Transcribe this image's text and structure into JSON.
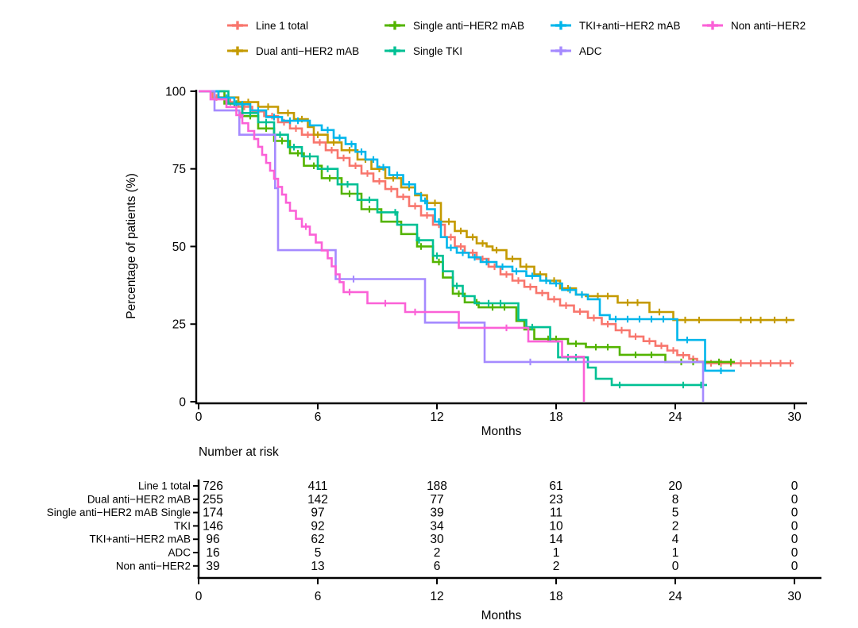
{
  "chart_data": {
    "type": "line",
    "subtype": "kaplan-meier-step",
    "title": "",
    "xlabel": "Months",
    "ylabel": "Percentage of patients (%)",
    "xlim": [
      0,
      30
    ],
    "ylim": [
      0,
      100
    ],
    "xticks": [
      0,
      6,
      12,
      18,
      24,
      30
    ],
    "yticks": [
      0,
      25,
      50,
      75,
      100
    ],
    "grid": false,
    "legend_position": "top",
    "legend_rows": [
      [
        0,
        2,
        4,
        6
      ],
      [
        1,
        3,
        5
      ]
    ],
    "series": [
      {
        "id": "line1-total",
        "name": "Line 1 total",
        "color": "#F8766D",
        "steps": [
          [
            0,
            100
          ],
          [
            0.7,
            98
          ],
          [
            1.4,
            96.5
          ],
          [
            2,
            95
          ],
          [
            2.7,
            93.5
          ],
          [
            3.3,
            92
          ],
          [
            4,
            90
          ],
          [
            4.6,
            88
          ],
          [
            5.2,
            86
          ],
          [
            5.8,
            83.5
          ],
          [
            6.4,
            81
          ],
          [
            7,
            78.5
          ],
          [
            7.6,
            76
          ],
          [
            8.2,
            73.5
          ],
          [
            8.8,
            71
          ],
          [
            9.4,
            68.5
          ],
          [
            10,
            66
          ],
          [
            10.6,
            63
          ],
          [
            11.2,
            60
          ],
          [
            11.8,
            57
          ],
          [
            12.4,
            53
          ],
          [
            12.9,
            50
          ],
          [
            13.4,
            48
          ],
          [
            14,
            46
          ],
          [
            14.6,
            43.5
          ],
          [
            15.2,
            41
          ],
          [
            15.8,
            39
          ],
          [
            16.4,
            37
          ],
          [
            17,
            35
          ],
          [
            17.6,
            33
          ],
          [
            18.2,
            31
          ],
          [
            18.9,
            29
          ],
          [
            19.6,
            27
          ],
          [
            20.3,
            25
          ],
          [
            21,
            23
          ],
          [
            21.7,
            21
          ],
          [
            22.4,
            19.5
          ],
          [
            23,
            18
          ],
          [
            23.6,
            16.5
          ],
          [
            24.1,
            15
          ],
          [
            24.7,
            13.8
          ],
          [
            25.1,
            12.9
          ],
          [
            25.5,
            12.4
          ],
          [
            29.9,
            12.4
          ]
        ],
        "censors": [
          0.9,
          1.6,
          2.3,
          3,
          3.7,
          4.3,
          4.9,
          5.5,
          6.1,
          6.7,
          7.3,
          7.9,
          8.5,
          9.1,
          9.7,
          10.3,
          10.9,
          11.5,
          12.1,
          12.7,
          13.2,
          13.8,
          14.3,
          14.9,
          15.5,
          16.1,
          16.7,
          17.3,
          17.9,
          18.5,
          19.2,
          19.9,
          20.6,
          21.3,
          22,
          22.7,
          23.3,
          23.9,
          24.4,
          24.9,
          25.8,
          26.3,
          26.8,
          27.3,
          27.8,
          28.3,
          28.8,
          29.3,
          29.8
        ]
      },
      {
        "id": "dual-anti-her2-mab",
        "name": "Dual anti−HER2 mAB",
        "color": "#C49A00",
        "steps": [
          [
            0,
            100
          ],
          [
            1,
            98
          ],
          [
            2,
            96.5
          ],
          [
            3,
            95
          ],
          [
            4,
            93
          ],
          [
            4.8,
            91
          ],
          [
            5.5,
            88.5
          ],
          [
            5.8,
            86
          ],
          [
            6.5,
            83.5
          ],
          [
            7.2,
            81
          ],
          [
            8,
            78
          ],
          [
            8.7,
            75
          ],
          [
            9.4,
            72
          ],
          [
            10.2,
            69
          ],
          [
            10.9,
            66.5
          ],
          [
            11.5,
            64
          ],
          [
            12.2,
            58
          ],
          [
            12.9,
            55
          ],
          [
            13.5,
            53
          ],
          [
            14,
            51
          ],
          [
            14.5,
            50
          ],
          [
            14.8,
            48.8
          ],
          [
            15.5,
            46
          ],
          [
            16.2,
            43.5
          ],
          [
            16.9,
            41
          ],
          [
            17.5,
            39
          ],
          [
            18.2,
            36.5
          ],
          [
            19,
            34.5
          ],
          [
            19.5,
            34
          ],
          [
            21.1,
            31.9
          ],
          [
            22.7,
            28.9
          ],
          [
            23.9,
            26.3
          ],
          [
            30,
            26.3
          ]
        ],
        "censors": [
          1.5,
          2.5,
          3.5,
          4.5,
          5.2,
          6,
          6.8,
          7.6,
          8.4,
          9.1,
          9.8,
          10.6,
          11.2,
          11.9,
          12.6,
          13.2,
          13.8,
          14.3,
          15,
          15.8,
          16.5,
          17.2,
          17.9,
          18.6,
          19.3,
          20.1,
          20.6,
          21.6,
          22.1,
          23.2,
          24.5,
          25.2,
          27.3,
          27.8,
          28.3,
          29,
          29.6
        ]
      },
      {
        "id": "single-anti-her2-mab",
        "name": "Single anti−HER2 mAB",
        "color": "#53B400",
        "steps": [
          [
            0,
            100
          ],
          [
            1.3,
            96
          ],
          [
            2.2,
            92
          ],
          [
            3,
            88
          ],
          [
            3.8,
            84
          ],
          [
            4.6,
            80
          ],
          [
            5.3,
            76
          ],
          [
            6.2,
            72
          ],
          [
            7.2,
            67
          ],
          [
            8.2,
            62
          ],
          [
            9.2,
            58
          ],
          [
            10.2,
            54
          ],
          [
            11,
            50
          ],
          [
            11.8,
            45
          ],
          [
            12.3,
            40
          ],
          [
            12.8,
            34.8
          ],
          [
            13.4,
            32
          ],
          [
            14.1,
            30.4
          ],
          [
            16,
            26
          ],
          [
            16.4,
            23.3
          ],
          [
            16.9,
            20.2
          ],
          [
            18.6,
            18.7
          ],
          [
            19.5,
            17.6
          ],
          [
            21.2,
            15.1
          ],
          [
            23.5,
            12.8
          ],
          [
            27,
            12.8
          ]
        ],
        "censors": [
          1.8,
          2.6,
          3.4,
          4.2,
          5,
          5.8,
          6.6,
          7.6,
          8.6,
          10,
          11.2,
          12.1,
          13.1,
          14,
          14.8,
          15.4,
          17.6,
          18,
          19,
          20,
          20.6,
          22,
          22.8,
          24.3,
          24.9,
          25.5,
          26.2,
          26.8
        ]
      },
      {
        "id": "single-tki",
        "name": "Single TKI",
        "color": "#00C094",
        "steps": [
          [
            0,
            100
          ],
          [
            1.5,
            96
          ],
          [
            2.2,
            93
          ],
          [
            3,
            90
          ],
          [
            3.8,
            86
          ],
          [
            4.5,
            82
          ],
          [
            5.2,
            79
          ],
          [
            6,
            75
          ],
          [
            7,
            70
          ],
          [
            8,
            65
          ],
          [
            9,
            61
          ],
          [
            10,
            57
          ],
          [
            11,
            52
          ],
          [
            11.8,
            47
          ],
          [
            12.3,
            42
          ],
          [
            12.8,
            37.3
          ],
          [
            13.3,
            34
          ],
          [
            13.9,
            31.7
          ],
          [
            16.1,
            26.3
          ],
          [
            16.5,
            24
          ],
          [
            17.7,
            19.4
          ],
          [
            18.1,
            14.3
          ],
          [
            19.6,
            11
          ],
          [
            20,
            7.4
          ],
          [
            20.8,
            5.4
          ],
          [
            25.6,
            5.4
          ]
        ],
        "censors": [
          1.9,
          2.6,
          3.4,
          4.1,
          4.8,
          5.6,
          6.5,
          7.5,
          8.6,
          9.9,
          11.1,
          12,
          13,
          14.6,
          15.2,
          16.8,
          18.6,
          19,
          21.2,
          24.4,
          25.3
        ]
      },
      {
        "id": "tki-anti-her2-mab",
        "name": "TKI+anti−HER2 mAB",
        "color": "#00B6EB",
        "steps": [
          [
            0,
            100
          ],
          [
            1,
            97.9
          ],
          [
            1.8,
            95.8
          ],
          [
            2.6,
            93.8
          ],
          [
            3.4,
            91.7
          ],
          [
            4.2,
            90.5
          ],
          [
            5.6,
            89
          ],
          [
            6.2,
            87.5
          ],
          [
            6.8,
            85
          ],
          [
            7.4,
            83
          ],
          [
            7.9,
            80.5
          ],
          [
            8.4,
            78
          ],
          [
            9,
            75.5
          ],
          [
            9.6,
            73
          ],
          [
            10.3,
            70
          ],
          [
            10.9,
            67
          ],
          [
            11.2,
            64.7
          ],
          [
            11.5,
            62
          ],
          [
            11.9,
            58
          ],
          [
            12.2,
            53
          ],
          [
            12.5,
            49.6
          ],
          [
            13,
            48
          ],
          [
            13.6,
            46.5
          ],
          [
            14.2,
            45
          ],
          [
            15,
            43.5
          ],
          [
            15.8,
            42
          ],
          [
            16.5,
            40.5
          ],
          [
            17.2,
            39
          ],
          [
            17.7,
            38.1
          ],
          [
            18.3,
            36
          ],
          [
            19,
            34.5
          ],
          [
            19.6,
            33
          ],
          [
            20.2,
            27.9
          ],
          [
            20.7,
            26.6
          ],
          [
            24.1,
            19.9
          ],
          [
            25.5,
            10
          ],
          [
            27,
            10
          ]
        ],
        "censors": [
          1.4,
          2.2,
          3,
          3.8,
          4.6,
          5,
          6.5,
          7.1,
          7.7,
          8.2,
          8.8,
          9.3,
          10,
          10.6,
          11.4,
          12.1,
          12.7,
          13.3,
          13.9,
          14.5,
          15.3,
          16,
          16.8,
          17.5,
          18,
          18.7,
          19.3,
          21,
          21.6,
          22.2,
          22.8,
          23.4,
          24.6,
          26.3
        ]
      },
      {
        "id": "adc",
        "name": "ADC",
        "color": "#A58AFF",
        "steps": [
          [
            0,
            100
          ],
          [
            0.8,
            93.8
          ],
          [
            2.05,
            86
          ],
          [
            3.85,
            68.8
          ],
          [
            4,
            48.8
          ],
          [
            6.9,
            39.5
          ],
          [
            11.4,
            25.5
          ],
          [
            14.4,
            12.8
          ],
          [
            25.4,
            0
          ]
        ],
        "censors": [
          7.8,
          16.7
        ]
      },
      {
        "id": "non-anti-her2",
        "name": "Non anti−HER2",
        "color": "#FB61D7",
        "steps": [
          [
            0,
            100
          ],
          [
            0.6,
            97.4
          ],
          [
            1.4,
            94.9
          ],
          [
            1.9,
            92.3
          ],
          [
            2.2,
            89.7
          ],
          [
            2.5,
            87.2
          ],
          [
            2.8,
            84.6
          ],
          [
            3,
            82.1
          ],
          [
            3.2,
            79.5
          ],
          [
            3.4,
            76.9
          ],
          [
            3.6,
            74.4
          ],
          [
            3.8,
            71.8
          ],
          [
            4,
            69.2
          ],
          [
            4.2,
            66.7
          ],
          [
            4.4,
            64.1
          ],
          [
            4.6,
            61.5
          ],
          [
            4.9,
            58.9
          ],
          [
            5.2,
            56.4
          ],
          [
            5.6,
            53.8
          ],
          [
            5.9,
            51.3
          ],
          [
            6.2,
            48.7
          ],
          [
            6.5,
            46.2
          ],
          [
            6.7,
            43.6
          ],
          [
            6.9,
            41
          ],
          [
            7.1,
            38.5
          ],
          [
            7.3,
            35.3
          ],
          [
            8.5,
            31.7
          ],
          [
            10.4,
            28.9
          ],
          [
            13.1,
            23.8
          ],
          [
            16.6,
            19.4
          ],
          [
            18.3,
            14.5
          ],
          [
            19.4,
            0
          ]
        ],
        "censors": [
          2.1,
          5.4,
          7.6,
          9.4,
          10.9,
          15.5
        ]
      }
    ]
  },
  "risk_table": {
    "title": "Number at risk",
    "xlabel": "Months",
    "xticks": [
      0,
      6,
      12,
      18,
      24,
      30
    ],
    "rows": [
      {
        "label": "Line 1 total",
        "values": [
          726,
          411,
          188,
          61,
          20,
          0
        ]
      },
      {
        "label": "Dual anti−HER2 mAB",
        "values": [
          255,
          142,
          77,
          23,
          8,
          0
        ]
      },
      {
        "label": "Single anti−HER2 mAB Single",
        "values": [
          174,
          97,
          39,
          11,
          5,
          0
        ]
      },
      {
        "label": "TKI",
        "values": [
          146,
          92,
          34,
          10,
          2,
          0
        ]
      },
      {
        "label": "TKI+anti−HER2 mAB",
        "values": [
          96,
          62,
          30,
          14,
          4,
          0
        ]
      },
      {
        "label": "ADC",
        "values": [
          16,
          5,
          2,
          1,
          1,
          0
        ]
      },
      {
        "label": "Non anti−HER2",
        "values": [
          39,
          13,
          6,
          2,
          0,
          0
        ]
      }
    ]
  }
}
